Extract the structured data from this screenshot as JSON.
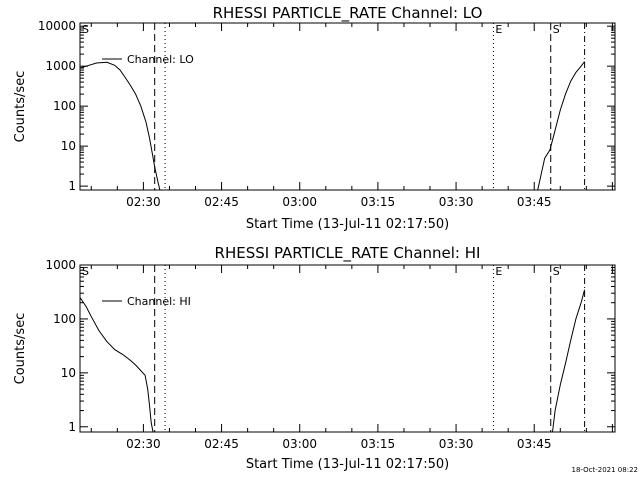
{
  "colors": {
    "background": "#ffffff",
    "foreground": "#000000"
  },
  "timestamp": "18-Oct-2021 08:22",
  "chart_data": [
    {
      "type": "line",
      "title": "RHESSI PARTICLE_RATE Channel: LO",
      "xlabel": "Start Time (13-Jul-11 02:17:50)",
      "ylabel": "Counts/sec",
      "y_scale": "log",
      "grid": false,
      "legend": "top-left",
      "xlim": [
        "02:17:50",
        "04:00:30"
      ],
      "ylim": [
        0.8,
        12000
      ],
      "x_ticks": [
        "02:30",
        "02:45",
        "03:00",
        "03:15",
        "03:30",
        "03:45"
      ],
      "y_ticks": [
        "1",
        "10",
        "100",
        "1000",
        "10000"
      ],
      "y_tick_values": [
        1,
        10,
        100,
        1000,
        10000
      ],
      "markers": [
        {
          "label": "S",
          "time": "02:17:50",
          "style": "dash"
        },
        {
          "label": "",
          "time": "02:32:10",
          "style": "dash"
        },
        {
          "label": "",
          "time": "02:34:10",
          "style": "dot"
        },
        {
          "label": "E",
          "time": "03:37:10",
          "style": "dot"
        },
        {
          "label": "S",
          "time": "03:48:10",
          "style": "dash"
        },
        {
          "label": "",
          "time": "03:54:40",
          "style": "dashdot"
        }
      ],
      "series": [
        {
          "name": "Channel: LO",
          "x": [
            "02:17:50",
            "02:19:00",
            "02:21:00",
            "02:23:00",
            "02:24:30",
            "02:25:30",
            "02:26:30",
            "02:27:30",
            "02:28:30",
            "02:29:30",
            "02:30:30",
            "02:31:10",
            "02:31:40",
            "02:32:10",
            "02:32:50",
            "02:33:10"
          ],
          "y": [
            900,
            1000,
            1200,
            1250,
            1050,
            800,
            520,
            330,
            200,
            100,
            40,
            16,
            7,
            3,
            1.2,
            0.8
          ],
          "segment2_x": [
            "03:45:40",
            "03:46:20",
            "03:47:00",
            "03:48:00",
            "03:49:00",
            "03:50:00",
            "03:51:00",
            "03:52:00",
            "03:53:00",
            "03:54:00",
            "03:54:40"
          ],
          "segment2_y": [
            0.8,
            2,
            5,
            8,
            25,
            80,
            200,
            420,
            700,
            1000,
            1300
          ]
        }
      ]
    },
    {
      "type": "line",
      "title": "RHESSI PARTICLE_RATE Channel: HI",
      "xlabel": "Start Time (13-Jul-11 02:17:50)",
      "ylabel": "Counts/sec",
      "y_scale": "log",
      "grid": false,
      "legend": "top-left",
      "xlim": [
        "02:17:50",
        "04:00:30"
      ],
      "ylim": [
        0.8,
        1000
      ],
      "x_ticks": [
        "02:30",
        "02:45",
        "03:00",
        "03:15",
        "03:30",
        "03:45"
      ],
      "y_ticks": [
        "1",
        "10",
        "100",
        "1000"
      ],
      "y_tick_values": [
        1,
        10,
        100,
        1000
      ],
      "markers": [
        {
          "label": "S",
          "time": "02:17:50",
          "style": "dash"
        },
        {
          "label": "",
          "time": "02:32:10",
          "style": "dash"
        },
        {
          "label": "",
          "time": "02:34:10",
          "style": "dot"
        },
        {
          "label": "E",
          "time": "03:37:10",
          "style": "dot"
        },
        {
          "label": "S",
          "time": "03:48:10",
          "style": "dash"
        },
        {
          "label": "",
          "time": "03:54:40",
          "style": "dashdot"
        }
      ],
      "series": [
        {
          "name": "Channel: HI",
          "x": [
            "02:17:50",
            "02:19:00",
            "02:20:00",
            "02:21:30",
            "02:23:00",
            "02:24:30",
            "02:26:00",
            "02:27:30",
            "02:28:30",
            "02:29:30",
            "02:30:20",
            "02:30:50",
            "02:31:10",
            "02:31:30",
            "02:31:50"
          ],
          "y": [
            250,
            170,
            110,
            60,
            38,
            27,
            22,
            17,
            14,
            11,
            9,
            5,
            2.5,
            1.2,
            0.8
          ],
          "segment2_x": [
            "03:48:30",
            "03:49:00",
            "03:50:00",
            "03:51:00",
            "03:52:00",
            "03:53:00",
            "03:54:00",
            "03:54:40"
          ],
          "segment2_y": [
            0.8,
            2,
            6,
            15,
            40,
            100,
            200,
            350
          ]
        }
      ]
    }
  ]
}
